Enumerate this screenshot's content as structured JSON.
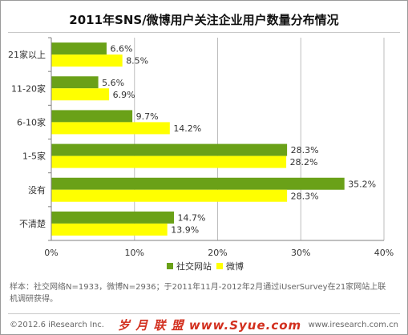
{
  "page": {
    "title": "2011年SNS/微博用户关注企业用户数量分布情况",
    "note": "样本：社交网络N=1933，微博N=2936；于2011年11月-2012年2月通过iUserSurvey在21家网站上联机调研获得。",
    "copyright": "©2012.6 iResearch Inc.",
    "watermark": "岁 月 联 盟  www.Syue.com",
    "website": "www.iresearch.com.cn"
  },
  "colors": {
    "series1": "#6aa118",
    "series2": "#ffff00",
    "grid": "#bdbdbd",
    "watermark": "#d22f1e"
  },
  "chart_data": {
    "type": "bar",
    "orientation": "horizontal",
    "categories": [
      "21家以上",
      "11-20家",
      "6-10家",
      "1-5家",
      "没有",
      "不清楚"
    ],
    "series": [
      {
        "name": "社交网站",
        "values": [
          6.6,
          5.6,
          9.7,
          28.3,
          35.2,
          14.7
        ]
      },
      {
        "name": "微博",
        "values": [
          8.5,
          6.9,
          14.2,
          28.2,
          28.3,
          13.9
        ]
      }
    ],
    "xlim": [
      0,
      40
    ],
    "xticks": [
      0,
      10,
      20,
      30,
      40
    ],
    "xtick_labels": [
      "0%",
      "10%",
      "20%",
      "30%",
      "40%"
    ],
    "value_suffix": "%",
    "grid": true,
    "legend_position": "bottom"
  }
}
